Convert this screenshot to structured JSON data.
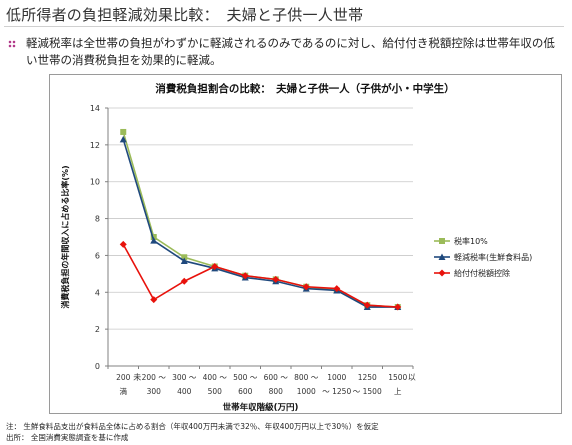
{
  "page": {
    "title": "低所得者の負担軽減効果比較：　夫婦と子供一人世帯",
    "summary": "軽減税率は全世帯の負担がわずかに軽減されるのみであるのに対し、給付付き税額控除は世帯年収の低い世帯の消費税負担を効果的に軽減。",
    "note": "注： 生鮮食料品支出が食料品全体に占める割合（年収400万円未満で32％、年収400万円以上で30％）を仮定",
    "source": "出所： 全国消費実態調査を基に作成"
  },
  "colors": {
    "s1": "#9bbb59",
    "s2": "#1f497d",
    "s3": "#e8120c",
    "grid": "#c8c8c8",
    "axis": "#808080"
  },
  "chart_data": {
    "type": "line",
    "title": "消費税負担割合の比較：　夫婦と子供一人（子供が小・中学生）",
    "xlabel": "世帯年収階級(万円)",
    "ylabel": "消費税負担の年間収入に占める比率(%)",
    "ylim": [
      0,
      14
    ],
    "yticks": [
      0,
      2,
      4,
      6,
      8,
      10,
      12,
      14
    ],
    "categories": [
      "200未満",
      "200～300",
      "300～400",
      "400～500",
      "500～600",
      "600～800",
      "800～1000",
      "1000～1250",
      "1250～1500",
      "1500以上"
    ],
    "tick_labels": [
      [
        "200",
        "満"
      ],
      [
        "200 〜",
        "300"
      ],
      [
        "300 〜",
        "400"
      ],
      [
        "400 〜",
        "500"
      ],
      [
        "500 〜",
        "600"
      ],
      [
        "600 〜",
        "800"
      ],
      [
        "800 〜",
        "1000"
      ],
      [
        "1000",
        "〜 1250"
      ],
      [
        "1250",
        "〜 1500"
      ],
      [
        "1500",
        "上"
      ]
    ],
    "tick_side": [
      [
        "未",
        "以"
      ]
    ],
    "grid": true,
    "legend_position": "right",
    "series": [
      {
        "name": "税率10%",
        "marker": "square",
        "values": [
          12.7,
          7.0,
          5.9,
          5.4,
          4.9,
          4.7,
          4.3,
          4.1,
          3.3,
          3.2
        ]
      },
      {
        "name": "軽減税率(生鮮食料品)",
        "marker": "triangle",
        "values": [
          12.3,
          6.8,
          5.7,
          5.3,
          4.8,
          4.6,
          4.2,
          4.1,
          3.2,
          3.2
        ]
      },
      {
        "name": "給付付税額控除",
        "marker": "diamond",
        "values": [
          6.6,
          3.6,
          4.6,
          5.4,
          4.9,
          4.7,
          4.3,
          4.2,
          3.3,
          3.2
        ]
      }
    ]
  }
}
